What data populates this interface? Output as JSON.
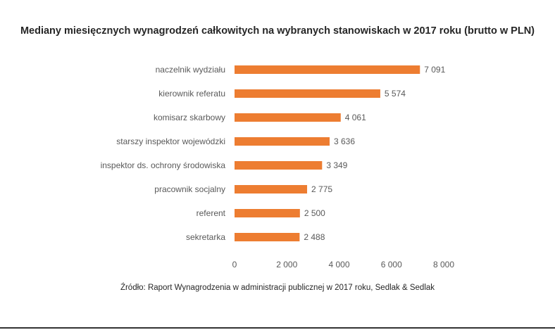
{
  "chart_data": {
    "type": "bar",
    "orientation": "horizontal",
    "title": "Mediany miesięcznych wynagrodzeń całkowitych na wybranych stanowiskach w 2017 roku (brutto w PLN)",
    "categories": [
      "naczelnik wydziału",
      "kierownik referatu",
      "komisarz skarbowy",
      "starszy inspektor wojewódzki",
      "inspektor ds. ochrony środowiska",
      "pracownik socjalny",
      "referent",
      "sekretarka"
    ],
    "values": [
      7091,
      5574,
      4061,
      3636,
      3349,
      2775,
      2500,
      2488
    ],
    "value_labels": [
      "7 091",
      "5 574",
      "4 061",
      "3 636",
      "3 349",
      "2 775",
      "2 500",
      "2 488"
    ],
    "xlim": [
      0,
      8000
    ],
    "xticks": [
      0,
      2000,
      4000,
      6000,
      8000
    ],
    "xtick_labels": [
      "0",
      "2 000",
      "4 000",
      "6 000",
      "8 000"
    ],
    "grid": false,
    "legend": "none",
    "bar_color": "#ed7d31"
  },
  "source": "Źródło: Raport Wynagrodzenia w administracji publicznej w 2017 roku, Sedlak & Sedlak"
}
